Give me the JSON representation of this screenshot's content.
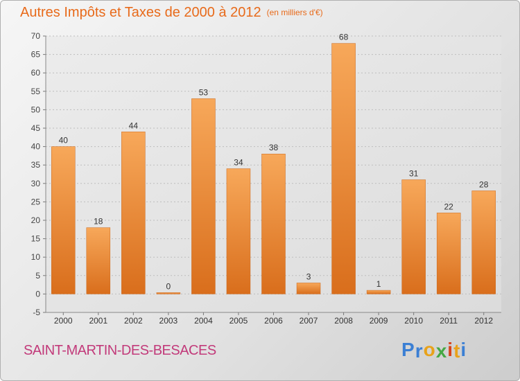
{
  "title": "Autres Impôts et Taxes de 2000 à 2012",
  "unit_label": "(en milliers d'€)",
  "city": "SAINT-MARTIN-DES-BESACES",
  "logo": {
    "text": "Proxiti",
    "colors": [
      "#3b7fd4",
      "#3b7fd4",
      "#e8a21a",
      "#45a845",
      "#d8431b",
      "#e8a21a",
      "#3b7fd4"
    ]
  },
  "colors": {
    "title": "#e86a1a",
    "city": "#c23a7a",
    "bar_light": "#f7a85a",
    "bar_dark": "#d96e1c"
  },
  "chart_data": {
    "type": "bar",
    "title": "Autres Impôts et Taxes de 2000 à 2012",
    "subtitle": "(en milliers d'€)",
    "categories": [
      "2000",
      "2001",
      "2002",
      "2003",
      "2004",
      "2005",
      "2006",
      "2007",
      "2008",
      "2009",
      "2010",
      "2011",
      "2012"
    ],
    "values": [
      40,
      18,
      44,
      0,
      53,
      34,
      38,
      3,
      68,
      1,
      31,
      22,
      28
    ],
    "data_labels": [
      "40",
      "18",
      "44",
      "0",
      "53",
      "34",
      "38",
      "3",
      "68",
      "1",
      "31",
      "22",
      "28"
    ],
    "yticks": [
      "-5",
      "0",
      "5",
      "10",
      "15",
      "20",
      "25",
      "30",
      "35",
      "40",
      "45",
      "50",
      "55",
      "60",
      "65",
      "70"
    ],
    "ylim": [
      -5,
      70
    ],
    "grid": true,
    "legend": "none"
  }
}
